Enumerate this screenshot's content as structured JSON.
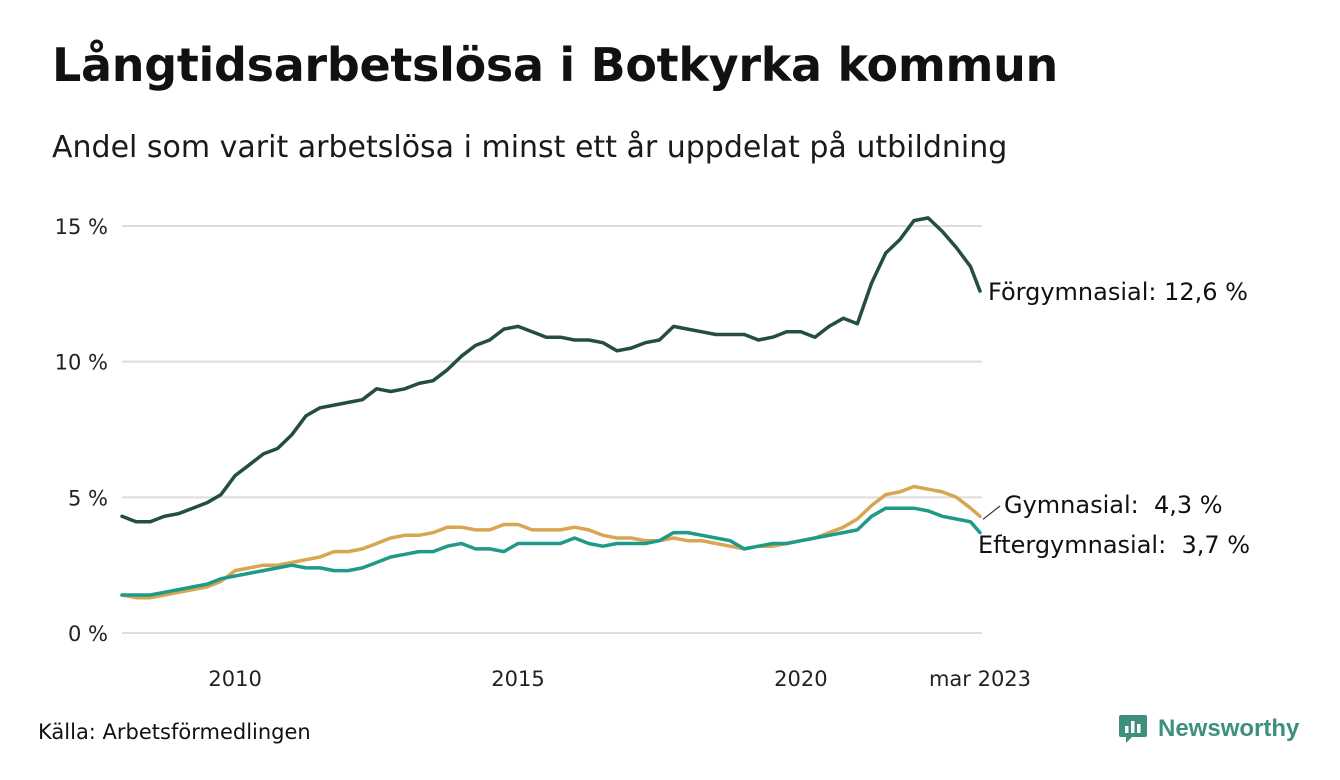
{
  "header": {
    "title": "Långtidsarbetslösa i Botkyrka kommun",
    "subtitle": "Andel som varit arbetslösa i minst ett år uppdelat på utbildning"
  },
  "footer": {
    "source": "Källa: Arbetsförmedlingen",
    "brand": "Newsworthy"
  },
  "colors": {
    "forgymnasial": "#244d45",
    "gymnasial": "#d8a650",
    "eftergymnasial": "#1f9a8a",
    "grid": "#dddddd",
    "brand": "#3f8f7f"
  },
  "chart_data": {
    "type": "line",
    "x_range": [
      "2008-01",
      "2023-03"
    ],
    "ylim": [
      0,
      15
    ],
    "y_ticks": [
      0,
      5,
      10,
      15
    ],
    "y_tick_labels": [
      "0 %",
      "5 %",
      "10 %",
      "15 %"
    ],
    "x_ticks": [
      "2010-01",
      "2015-01",
      "2020-01",
      "2023-03"
    ],
    "x_tick_labels": [
      "2010",
      "2015",
      "2020",
      "mar 2023"
    ],
    "grid": "horizontal",
    "series": [
      {
        "key": "forgymnasial",
        "label": "Förgymnasial: 12,6 %",
        "points": [
          [
            "2008-01",
            4.3
          ],
          [
            "2008-04",
            4.1
          ],
          [
            "2008-07",
            4.1
          ],
          [
            "2008-10",
            4.3
          ],
          [
            "2009-01",
            4.4
          ],
          [
            "2009-04",
            4.6
          ],
          [
            "2009-07",
            4.8
          ],
          [
            "2009-10",
            5.1
          ],
          [
            "2010-01",
            5.8
          ],
          [
            "2010-04",
            6.2
          ],
          [
            "2010-07",
            6.6
          ],
          [
            "2010-10",
            6.8
          ],
          [
            "2011-01",
            7.3
          ],
          [
            "2011-04",
            8.0
          ],
          [
            "2011-07",
            8.3
          ],
          [
            "2011-10",
            8.4
          ],
          [
            "2012-01",
            8.5
          ],
          [
            "2012-04",
            8.6
          ],
          [
            "2012-07",
            9.0
          ],
          [
            "2012-10",
            8.9
          ],
          [
            "2013-01",
            9.0
          ],
          [
            "2013-04",
            9.2
          ],
          [
            "2013-07",
            9.3
          ],
          [
            "2013-10",
            9.7
          ],
          [
            "2014-01",
            10.2
          ],
          [
            "2014-04",
            10.6
          ],
          [
            "2014-07",
            10.8
          ],
          [
            "2014-10",
            11.2
          ],
          [
            "2015-01",
            11.3
          ],
          [
            "2015-04",
            11.1
          ],
          [
            "2015-07",
            10.9
          ],
          [
            "2015-10",
            10.9
          ],
          [
            "2016-01",
            10.8
          ],
          [
            "2016-04",
            10.8
          ],
          [
            "2016-07",
            10.7
          ],
          [
            "2016-10",
            10.4
          ],
          [
            "2017-01",
            10.5
          ],
          [
            "2017-04",
            10.7
          ],
          [
            "2017-07",
            10.8
          ],
          [
            "2017-10",
            11.3
          ],
          [
            "2018-01",
            11.2
          ],
          [
            "2018-04",
            11.1
          ],
          [
            "2018-07",
            11.0
          ],
          [
            "2018-10",
            11.0
          ],
          [
            "2019-01",
            11.0
          ],
          [
            "2019-04",
            10.8
          ],
          [
            "2019-07",
            10.9
          ],
          [
            "2019-10",
            11.1
          ],
          [
            "2020-01",
            11.1
          ],
          [
            "2020-04",
            10.9
          ],
          [
            "2020-07",
            11.3
          ],
          [
            "2020-10",
            11.6
          ],
          [
            "2021-01",
            11.4
          ],
          [
            "2021-04",
            12.9
          ],
          [
            "2021-07",
            14.0
          ],
          [
            "2021-10",
            14.5
          ],
          [
            "2022-01",
            15.2
          ],
          [
            "2022-04",
            15.3
          ],
          [
            "2022-07",
            14.8
          ],
          [
            "2022-10",
            14.2
          ],
          [
            "2023-01",
            13.5
          ],
          [
            "2023-03",
            12.6
          ]
        ]
      },
      {
        "key": "gymnasial",
        "label": "Gymnasial:  4,3 %",
        "points": [
          [
            "2008-01",
            1.4
          ],
          [
            "2008-04",
            1.3
          ],
          [
            "2008-07",
            1.3
          ],
          [
            "2008-10",
            1.4
          ],
          [
            "2009-01",
            1.5
          ],
          [
            "2009-04",
            1.6
          ],
          [
            "2009-07",
            1.7
          ],
          [
            "2009-10",
            1.9
          ],
          [
            "2010-01",
            2.3
          ],
          [
            "2010-04",
            2.4
          ],
          [
            "2010-07",
            2.5
          ],
          [
            "2010-10",
            2.5
          ],
          [
            "2011-01",
            2.6
          ],
          [
            "2011-04",
            2.7
          ],
          [
            "2011-07",
            2.8
          ],
          [
            "2011-10",
            3.0
          ],
          [
            "2012-01",
            3.0
          ],
          [
            "2012-04",
            3.1
          ],
          [
            "2012-07",
            3.3
          ],
          [
            "2012-10",
            3.5
          ],
          [
            "2013-01",
            3.6
          ],
          [
            "2013-04",
            3.6
          ],
          [
            "2013-07",
            3.7
          ],
          [
            "2013-10",
            3.9
          ],
          [
            "2014-01",
            3.9
          ],
          [
            "2014-04",
            3.8
          ],
          [
            "2014-07",
            3.8
          ],
          [
            "2014-10",
            4.0
          ],
          [
            "2015-01",
            4.0
          ],
          [
            "2015-04",
            3.8
          ],
          [
            "2015-07",
            3.8
          ],
          [
            "2015-10",
            3.8
          ],
          [
            "2016-01",
            3.9
          ],
          [
            "2016-04",
            3.8
          ],
          [
            "2016-07",
            3.6
          ],
          [
            "2016-10",
            3.5
          ],
          [
            "2017-01",
            3.5
          ],
          [
            "2017-04",
            3.4
          ],
          [
            "2017-07",
            3.4
          ],
          [
            "2017-10",
            3.5
          ],
          [
            "2018-01",
            3.4
          ],
          [
            "2018-04",
            3.4
          ],
          [
            "2018-07",
            3.3
          ],
          [
            "2018-10",
            3.2
          ],
          [
            "2019-01",
            3.1
          ],
          [
            "2019-04",
            3.2
          ],
          [
            "2019-07",
            3.2
          ],
          [
            "2019-10",
            3.3
          ],
          [
            "2020-01",
            3.4
          ],
          [
            "2020-04",
            3.5
          ],
          [
            "2020-07",
            3.7
          ],
          [
            "2020-10",
            3.9
          ],
          [
            "2021-01",
            4.2
          ],
          [
            "2021-04",
            4.7
          ],
          [
            "2021-07",
            5.1
          ],
          [
            "2021-10",
            5.2
          ],
          [
            "2022-01",
            5.4
          ],
          [
            "2022-04",
            5.3
          ],
          [
            "2022-07",
            5.2
          ],
          [
            "2022-10",
            5.0
          ],
          [
            "2023-01",
            4.6
          ],
          [
            "2023-03",
            4.3
          ]
        ]
      },
      {
        "key": "eftergymnasial",
        "label": "Eftergymnasial:  3,7 %",
        "points": [
          [
            "2008-01",
            1.4
          ],
          [
            "2008-04",
            1.4
          ],
          [
            "2008-07",
            1.4
          ],
          [
            "2008-10",
            1.5
          ],
          [
            "2009-01",
            1.6
          ],
          [
            "2009-04",
            1.7
          ],
          [
            "2009-07",
            1.8
          ],
          [
            "2009-10",
            2.0
          ],
          [
            "2010-01",
            2.1
          ],
          [
            "2010-04",
            2.2
          ],
          [
            "2010-07",
            2.3
          ],
          [
            "2010-10",
            2.4
          ],
          [
            "2011-01",
            2.5
          ],
          [
            "2011-04",
            2.4
          ],
          [
            "2011-07",
            2.4
          ],
          [
            "2011-10",
            2.3
          ],
          [
            "2012-01",
            2.3
          ],
          [
            "2012-04",
            2.4
          ],
          [
            "2012-07",
            2.6
          ],
          [
            "2012-10",
            2.8
          ],
          [
            "2013-01",
            2.9
          ],
          [
            "2013-04",
            3.0
          ],
          [
            "2013-07",
            3.0
          ],
          [
            "2013-10",
            3.2
          ],
          [
            "2014-01",
            3.3
          ],
          [
            "2014-04",
            3.1
          ],
          [
            "2014-07",
            3.1
          ],
          [
            "2014-10",
            3.0
          ],
          [
            "2015-01",
            3.3
          ],
          [
            "2015-04",
            3.3
          ],
          [
            "2015-07",
            3.3
          ],
          [
            "2015-10",
            3.3
          ],
          [
            "2016-01",
            3.5
          ],
          [
            "2016-04",
            3.3
          ],
          [
            "2016-07",
            3.2
          ],
          [
            "2016-10",
            3.3
          ],
          [
            "2017-01",
            3.3
          ],
          [
            "2017-04",
            3.3
          ],
          [
            "2017-07",
            3.4
          ],
          [
            "2017-10",
            3.7
          ],
          [
            "2018-01",
            3.7
          ],
          [
            "2018-04",
            3.6
          ],
          [
            "2018-07",
            3.5
          ],
          [
            "2018-10",
            3.4
          ],
          [
            "2019-01",
            3.1
          ],
          [
            "2019-04",
            3.2
          ],
          [
            "2019-07",
            3.3
          ],
          [
            "2019-10",
            3.3
          ],
          [
            "2020-01",
            3.4
          ],
          [
            "2020-04",
            3.5
          ],
          [
            "2020-07",
            3.6
          ],
          [
            "2020-10",
            3.7
          ],
          [
            "2021-01",
            3.8
          ],
          [
            "2021-04",
            4.3
          ],
          [
            "2021-07",
            4.6
          ],
          [
            "2021-10",
            4.6
          ],
          [
            "2022-01",
            4.6
          ],
          [
            "2022-04",
            4.5
          ],
          [
            "2022-07",
            4.3
          ],
          [
            "2022-10",
            4.2
          ],
          [
            "2023-01",
            4.1
          ],
          [
            "2023-03",
            3.7
          ]
        ]
      }
    ]
  }
}
